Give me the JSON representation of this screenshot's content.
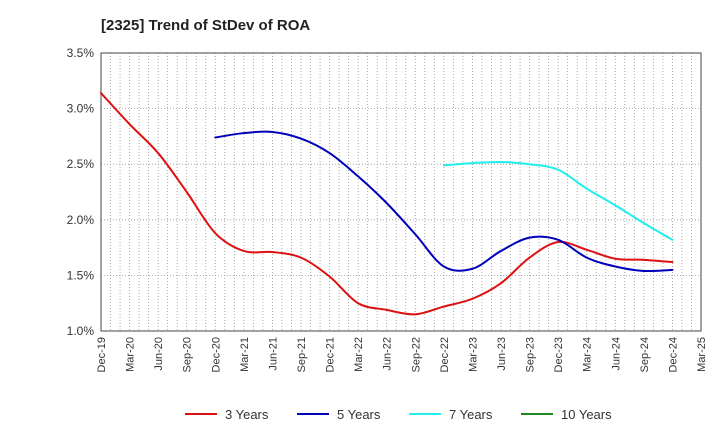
{
  "chart_data": {
    "type": "line",
    "title": "[2325]  Trend of StDev of ROA",
    "xlabel": "",
    "ylabel": "",
    "ylim": [
      1.0,
      3.5
    ],
    "yticks": [
      "1.0%",
      "1.5%",
      "2.0%",
      "2.5%",
      "3.0%",
      "3.5%"
    ],
    "ytick_values": [
      1.0,
      1.5,
      2.0,
      2.5,
      3.0,
      3.5
    ],
    "x_start": "Dec-19",
    "x_end": "Mar-25",
    "xticks": [
      "Dec-19",
      "Mar-20",
      "Jun-20",
      "Sep-20",
      "Dec-20",
      "Mar-21",
      "Jun-21",
      "Sep-21",
      "Dec-21",
      "Mar-22",
      "Jun-22",
      "Sep-22",
      "Dec-22",
      "Mar-23",
      "Jun-23",
      "Sep-23",
      "Dec-23",
      "Mar-24",
      "Jun-24",
      "Sep-24",
      "Dec-24",
      "Mar-25"
    ],
    "grid": true,
    "legend_position": "bottom",
    "series": [
      {
        "name": "3 Years",
        "color": "#dd1111",
        "x": [
          "Dec-19",
          "Mar-20",
          "Jun-20",
          "Sep-20",
          "Dec-20",
          "Mar-21",
          "Jun-21",
          "Sep-21",
          "Dec-21",
          "Mar-22",
          "Jun-22",
          "Sep-22",
          "Dec-22",
          "Mar-23",
          "Jun-23",
          "Sep-23",
          "Dec-23",
          "Mar-24",
          "Jun-24",
          "Sep-24",
          "Dec-24"
        ],
        "values": [
          3.14,
          2.86,
          2.6,
          2.25,
          1.88,
          1.72,
          1.71,
          1.66,
          1.49,
          1.25,
          1.19,
          1.15,
          1.22,
          1.29,
          1.43,
          1.66,
          1.8,
          1.73,
          1.65,
          1.64,
          1.62
        ]
      },
      {
        "name": "5 Years",
        "color": "#0000bb",
        "x": [
          "Dec-20",
          "Mar-21",
          "Jun-21",
          "Sep-21",
          "Dec-21",
          "Mar-22",
          "Jun-22",
          "Sep-22",
          "Dec-22",
          "Mar-23",
          "Jun-23",
          "Sep-23",
          "Dec-23",
          "Mar-24",
          "Jun-24",
          "Sep-24",
          "Dec-24"
        ],
        "values": [
          2.74,
          2.78,
          2.79,
          2.73,
          2.6,
          2.39,
          2.15,
          1.87,
          1.58,
          1.56,
          1.72,
          1.84,
          1.82,
          1.66,
          1.58,
          1.54,
          1.55
        ]
      },
      {
        "name": "7 Years",
        "color": "#22eeee",
        "x": [
          "Dec-22",
          "Mar-23",
          "Jun-23",
          "Sep-23",
          "Dec-23",
          "Mar-24",
          "Jun-24",
          "Sep-24",
          "Dec-24"
        ],
        "values": [
          2.49,
          2.51,
          2.52,
          2.5,
          2.45,
          2.28,
          2.13,
          1.97,
          1.82
        ]
      },
      {
        "name": "10 Years",
        "color": "#228822",
        "x": [],
        "values": []
      }
    ]
  }
}
